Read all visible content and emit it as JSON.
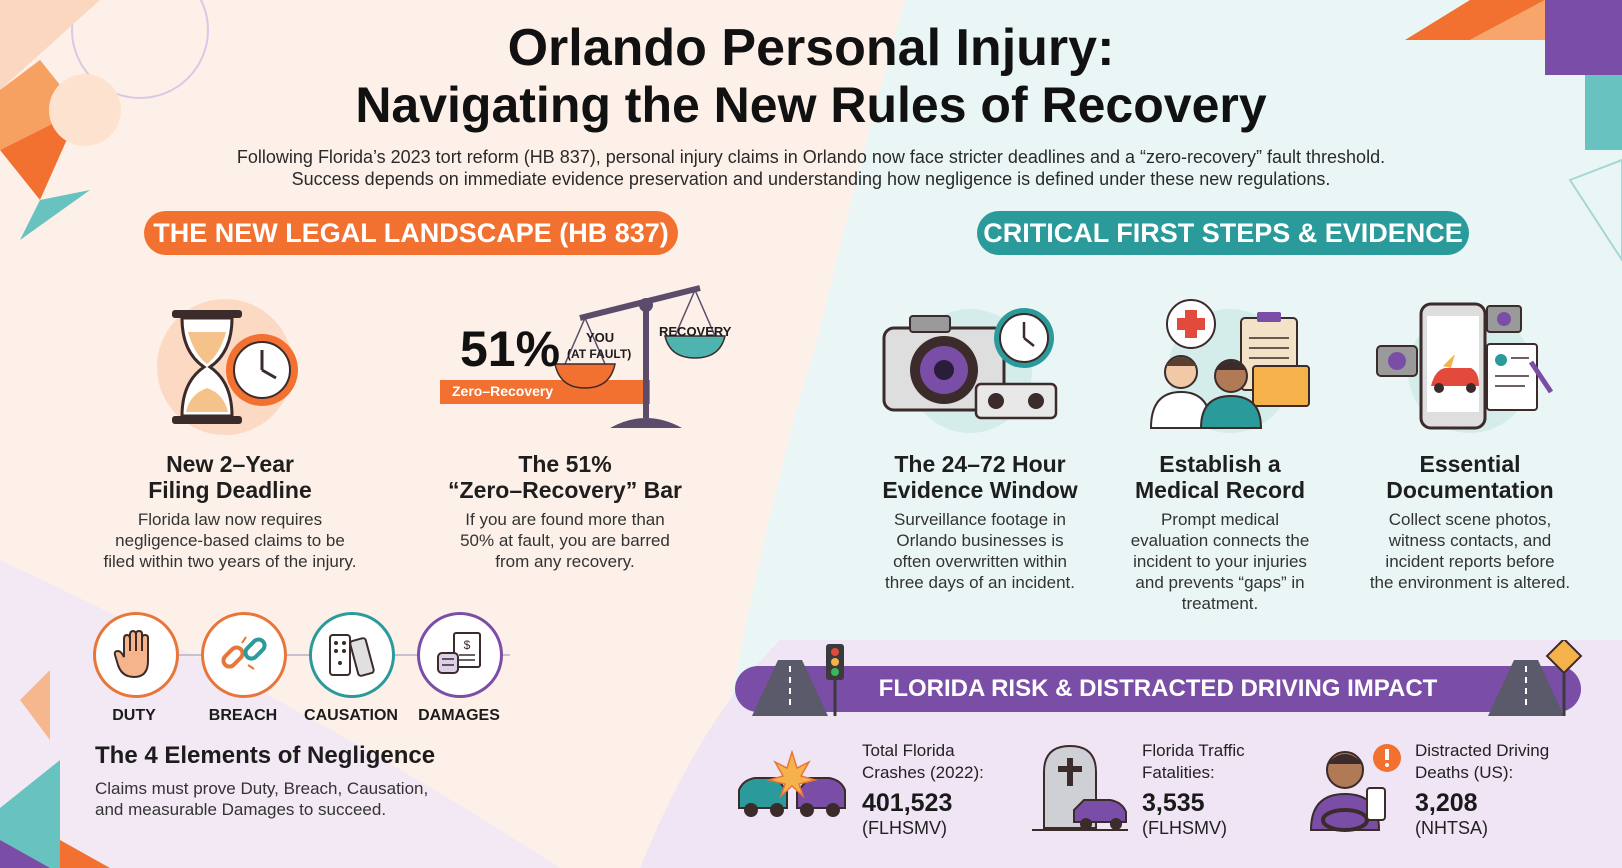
{
  "header": {
    "title_line1": "Orlando Personal Injury:",
    "title_line2": "Navigating the New Rules of Recovery",
    "intro_line1": "Following Florida’s 2023 tort reform (HB 837), personal injury claims in Orlando now face stricter deadlines and a “zero-recovery” fault threshold.",
    "intro_line2": "Success depends on immediate evidence preservation and understanding how negligence is defined under these new regulations."
  },
  "left": {
    "section_title": "THE NEW LEGAL LANDSCAPE (HB 837)",
    "cards": [
      {
        "title_line1": "New 2–Year",
        "title_line2": "Filing Deadline",
        "desc": [
          "Florida law now requires",
          "negligence-based claims to be",
          "filed within two years of the injury."
        ]
      },
      {
        "title_line1": "The 51%",
        "title_line2": "“Zero–Recovery” Bar",
        "desc": [
          "If you are found more than",
          "50% at fault, you are barred",
          "from any recovery."
        ]
      }
    ],
    "scale": {
      "percent": "51%",
      "you": "YOU",
      "at_fault": "(AT FAULT)",
      "recovery": "RECOVERY",
      "zero_recovery": "Zero–Recovery"
    },
    "elements": [
      {
        "label": "DUTY",
        "icon": "hand-icon",
        "color": "#e8763a"
      },
      {
        "label": "BREACH",
        "icon": "broken-chain-icon",
        "color": "#e8763a"
      },
      {
        "label": "CAUSATION",
        "icon": "dominoes-icon",
        "color": "#2b9a9b"
      },
      {
        "label": "DAMAGES",
        "icon": "medical-bill-icon",
        "color": "#7a4ea6"
      }
    ],
    "negligence_title": "The 4 Elements of Negligence",
    "negligence_desc": [
      "Claims must prove Duty, Breach, Causation,",
      "and measurable Damages to succeed."
    ]
  },
  "right": {
    "section_title": "CRITICAL FIRST STEPS & EVIDENCE",
    "cards": [
      {
        "title_line1": "The 24–72 Hour",
        "title_line2": "Evidence Window",
        "desc": [
          "Surveillance footage in",
          "Orlando businesses is",
          "often overwritten within",
          "three days of an incident."
        ]
      },
      {
        "title_line1": "Establish a",
        "title_line2": "Medical Record",
        "desc": [
          "Prompt medical",
          "evaluation connects the",
          "incident to your injuries",
          "and prevents “gaps” in",
          "treatment."
        ]
      },
      {
        "title_line1": "Essential",
        "title_line2": "Documentation",
        "desc": [
          "Collect scene photos,",
          "witness contacts, and",
          "incident reports before",
          "the environment is altered."
        ]
      }
    ]
  },
  "risk": {
    "banner": "FLORIDA RISK & DISTRACTED DRIVING IMPACT",
    "stats": [
      {
        "label_line1": "Total Florida",
        "label_line2": "Crashes (2022):",
        "value": "401,523",
        "source": "(FLHSMV)"
      },
      {
        "label_line1": "Florida Traffic",
        "label_line2": "Fatalities:",
        "value": "3,535",
        "source": "(FLHSMV)"
      },
      {
        "label_line1": "Distracted Driving",
        "label_line2": "Deaths (US):",
        "value": "3,208",
        "source": "(NHTSA)"
      }
    ]
  },
  "colors": {
    "orange": "#f27131",
    "teal": "#2b9a9b",
    "purple": "#7a4ea6",
    "peach_bg": "#fdf1ea",
    "mint_bg": "#e8f5f4",
    "lavender_bg": "#efe6f5"
  }
}
